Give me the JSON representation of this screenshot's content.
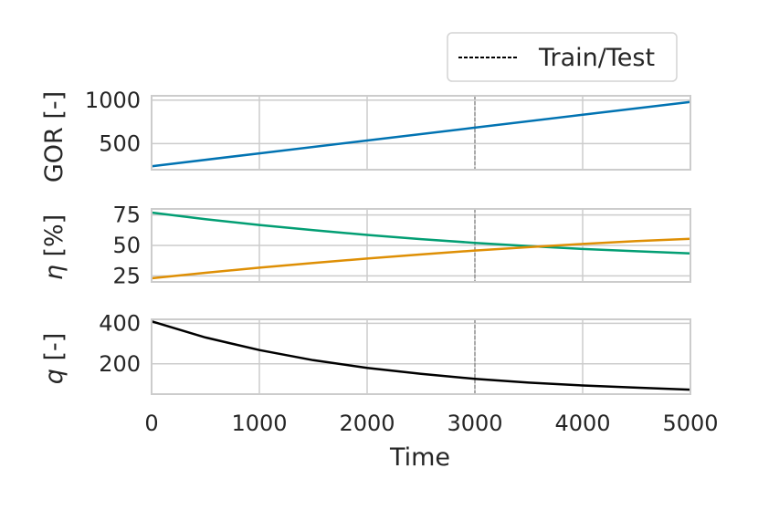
{
  "chart_data": [
    {
      "type": "line",
      "ylabel": "GOR [-]",
      "xlim": [
        0,
        5000
      ],
      "ylim": [
        200,
        1050
      ],
      "yticks": [
        500,
        1000
      ],
      "xticks": [
        0,
        1000,
        2000,
        3000,
        4000,
        5000
      ],
      "grid": true,
      "series": [
        {
          "color": "#0173b2",
          "x": [
            0,
            1000,
            2000,
            3000,
            4000,
            5000
          ],
          "values": [
            240,
            388,
            536,
            684,
            832,
            980
          ]
        }
      ]
    },
    {
      "type": "line",
      "ylabel": "η [%]",
      "ylabel_symbol": "η",
      "ylabel_unit": " [%]",
      "xlim": [
        0,
        5000
      ],
      "ylim": [
        20,
        80
      ],
      "yticks": [
        25,
        50,
        75
      ],
      "xticks": [
        0,
        1000,
        2000,
        3000,
        4000,
        5000
      ],
      "grid": true,
      "series": [
        {
          "color": "#029e73",
          "x": [
            0,
            500,
            1000,
            1500,
            2000,
            2500,
            3000,
            3500,
            4000,
            4500,
            5000
          ],
          "values": [
            77,
            71.5,
            66.8,
            62.5,
            58.6,
            55.2,
            52.1,
            49.4,
            47.1,
            45.2,
            43.4
          ]
        },
        {
          "color": "#de8f05",
          "x": [
            0,
            500,
            1000,
            1500,
            2000,
            2500,
            3000,
            3500,
            4000,
            4500,
            5000
          ],
          "values": [
            23,
            27.5,
            31.7,
            35.6,
            39.2,
            42.6,
            45.8,
            48.6,
            51.2,
            53.5,
            55.5
          ]
        }
      ]
    },
    {
      "type": "line",
      "ylabel": "q [-]",
      "ylabel_symbol": "q",
      "ylabel_unit": " [-]",
      "xlabel": "Time",
      "xlim": [
        0,
        5000
      ],
      "ylim": [
        50,
        420
      ],
      "yticks": [
        200,
        400
      ],
      "xticks": [
        0,
        1000,
        2000,
        3000,
        4000,
        5000
      ],
      "xticklabels": [
        "0",
        "1000",
        "2000",
        "3000",
        "4000",
        "5000"
      ],
      "grid": true,
      "series": [
        {
          "color": "#000000",
          "x": [
            0,
            500,
            1000,
            1500,
            2000,
            2500,
            3000,
            3500,
            4000,
            4500,
            5000
          ],
          "values": [
            410,
            330,
            268,
            218,
            180,
            150,
            126,
            107,
            93,
            82,
            72
          ]
        }
      ]
    }
  ],
  "split": {
    "x": 3000,
    "color": "#000000"
  },
  "legend": {
    "label": "Train/Test",
    "placement": "upper right"
  }
}
